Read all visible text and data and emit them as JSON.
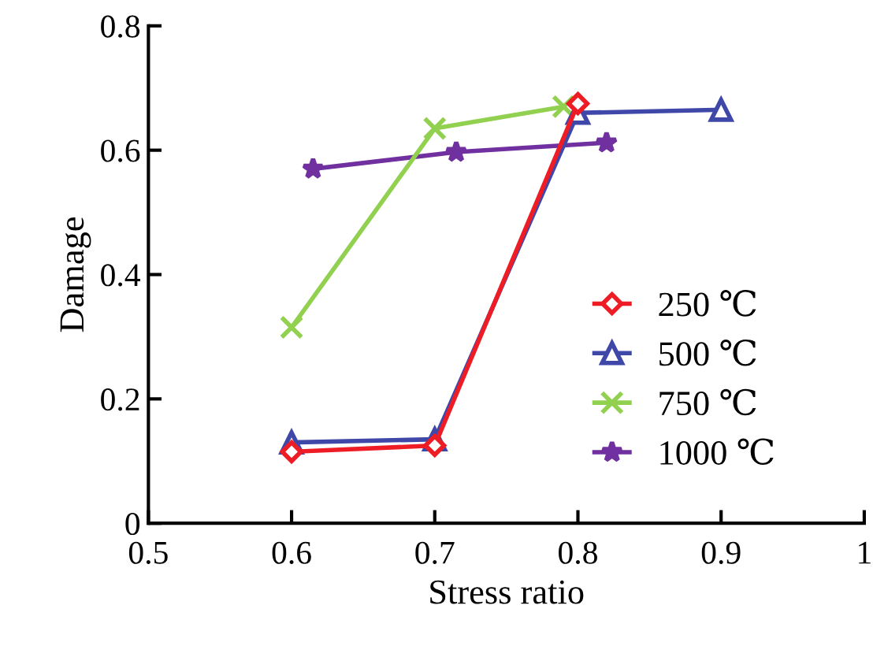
{
  "chart_data": {
    "type": "line",
    "xlabel": "Stress ratio",
    "ylabel": "Damage",
    "xlim": [
      0.5,
      1.0
    ],
    "xticks": [
      0.5,
      0.6,
      0.7,
      0.8,
      0.9,
      {
        "value": 1.0,
        "label": "1"
      }
    ],
    "ylim": [
      0,
      0.8
    ],
    "yticks": [
      {
        "value": 0,
        "label": "0"
      },
      0.2,
      0.4,
      0.6,
      0.8
    ],
    "grid": false,
    "legend": "bottom right",
    "series": [
      {
        "name": "250 ℃",
        "color": "#ee1c25",
        "marker": "diamond",
        "x": [
          0.6,
          0.7,
          0.8
        ],
        "values": [
          0.115,
          0.125,
          0.675
        ]
      },
      {
        "name": "500 ℃",
        "color": "#3f48a8",
        "marker": "triangle",
        "x": [
          0.6,
          0.7,
          0.8,
          0.9
        ],
        "values": [
          0.13,
          0.135,
          0.66,
          0.665
        ]
      },
      {
        "name": "750 ℃",
        "color": "#92d050",
        "marker": "cross",
        "x": [
          0.6,
          0.7,
          0.79
        ],
        "values": [
          0.315,
          0.635,
          0.67
        ]
      },
      {
        "name": "1000 ℃",
        "color": "#7030a0",
        "marker": "star",
        "x": [
          0.615,
          0.715,
          0.82
        ],
        "values": [
          0.57,
          0.597,
          0.612
        ]
      }
    ]
  }
}
